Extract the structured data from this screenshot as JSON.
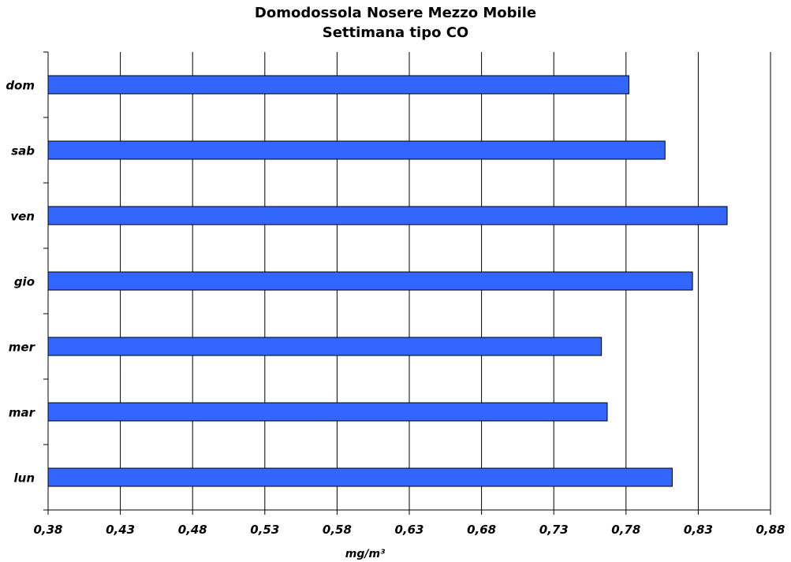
{
  "chart_data": {
    "type": "bar",
    "orientation": "horizontal",
    "title": "Domodossola Nosere Mezzo Mobile",
    "subtitle": "Settimana tipo CO",
    "xlabel": "mg/m³",
    "ylabel": "",
    "categories": [
      "lun",
      "mar",
      "mer",
      "gio",
      "ven",
      "sab",
      "dom"
    ],
    "values": [
      0.812,
      0.767,
      0.763,
      0.826,
      0.85,
      0.807,
      0.782
    ],
    "xlim": [
      0.38,
      0.88
    ],
    "xticks": [
      "0,38",
      "0,43",
      "0,48",
      "0,53",
      "0,58",
      "0,63",
      "0,68",
      "0,73",
      "0,78",
      "0,83",
      "0,88"
    ],
    "grid": "vertical",
    "bar_color": "#3366ff",
    "legend": "none"
  }
}
